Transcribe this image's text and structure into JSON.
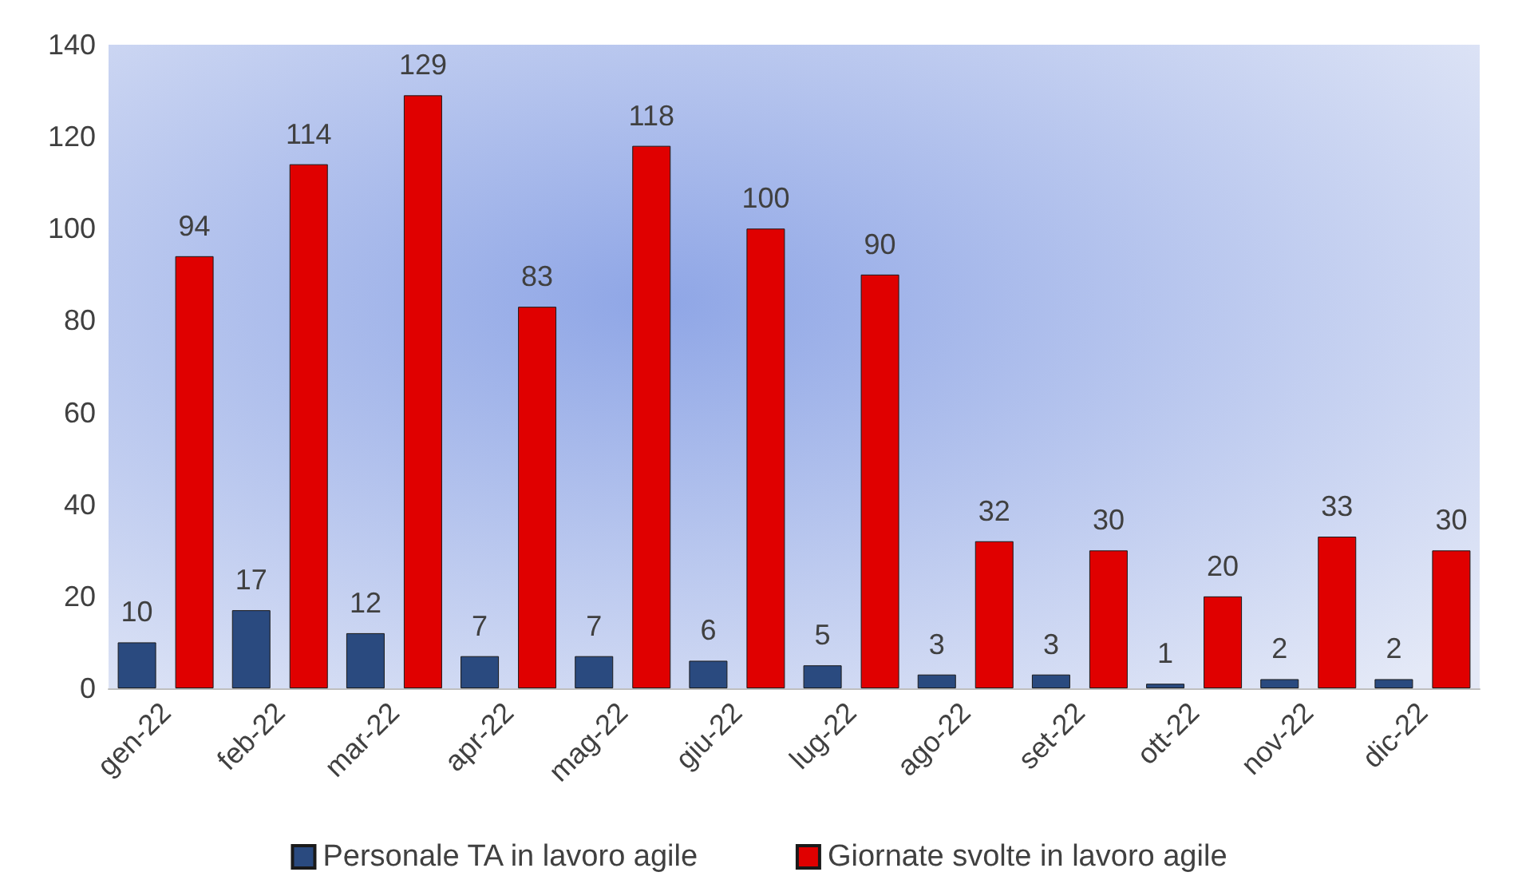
{
  "chart_data": {
    "type": "bar",
    "categories": [
      "gen-22",
      "feb-22",
      "mar-22",
      "apr-22",
      "mag-22",
      "giu-22",
      "lug-22",
      "ago-22",
      "set-22",
      "ott-22",
      "nov-22",
      "dic-22"
    ],
    "series": [
      {
        "name": "Personale TA in lavoro agile",
        "color": "#2a4a7f",
        "values": [
          10,
          17,
          12,
          7,
          7,
          6,
          5,
          3,
          3,
          1,
          2,
          2
        ]
      },
      {
        "name": "Giornate svolte in lavoro agile",
        "color": "#e00000",
        "values": [
          94,
          114,
          129,
          83,
          118,
          100,
          90,
          32,
          30,
          20,
          33,
          30
        ]
      }
    ],
    "ylim": [
      0,
      140
    ],
    "yticks": [
      0,
      20,
      40,
      60,
      80,
      100,
      120,
      140
    ],
    "grid": false,
    "legend": "bottom",
    "data_labels": true
  }
}
